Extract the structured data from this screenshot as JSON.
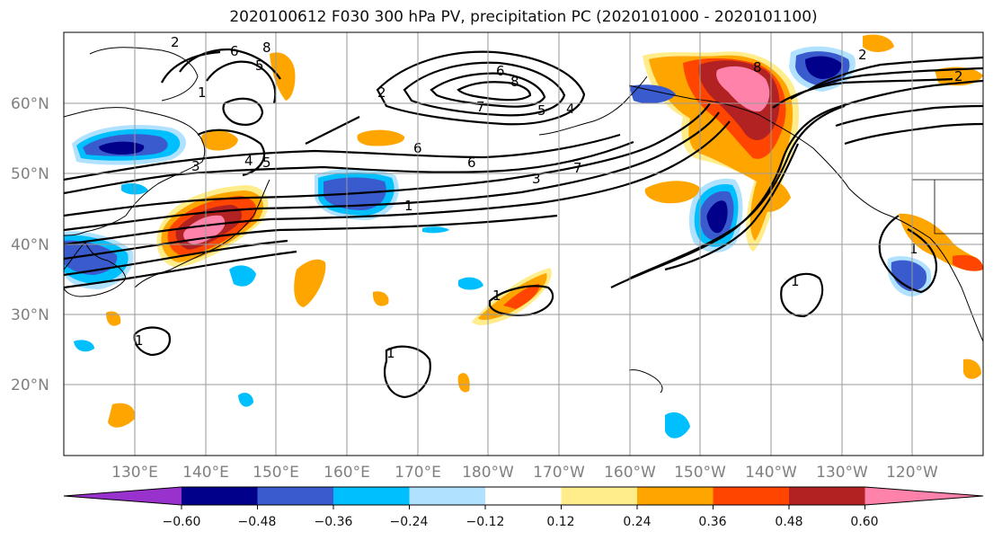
{
  "title": "2020100612 F030 300 hPa PV, precipitation PC (2020101000 - 2020101100)",
  "lat_labels": [
    "60°N",
    "50°N",
    "40°N",
    "30°N",
    "20°N"
  ],
  "lon_labels": [
    "130°E",
    "140°E",
    "150°E",
    "160°E",
    "170°E",
    "180°W",
    "170°W",
    "160°W",
    "150°W",
    "140°W",
    "130°W",
    "120°W"
  ],
  "colorbar": {
    "tick_labels": [
      "−0.60",
      "−0.48",
      "−0.36",
      "−0.24",
      "−0.12",
      "0.12",
      "0.24",
      "0.36",
      "0.48",
      "0.60"
    ],
    "colors": [
      "#9932CC",
      "#00008B",
      "#3A5BCD",
      "#00BFFF",
      "#B0E2FF",
      "#FFFFFF",
      "#FFEC8B",
      "#FFA500",
      "#FF4500",
      "#B22222",
      "#FF82AB"
    ]
  },
  "fill_colors": {
    "neg_strong": "#00008B",
    "neg_mid": "#3A5BCD",
    "neg": "#00BFFF",
    "neg_weak": "#B0E2FF",
    "pos_weak": "#FFEC8B",
    "pos": "#FFA500",
    "pos_mid": "#FF4500",
    "pos_strong": "#B22222",
    "pos_max": "#FF82AB"
  },
  "contour_labels": [
    "2",
    "6",
    "8",
    "5",
    "6",
    "8",
    "7",
    "5",
    "4",
    "1",
    "3",
    "4",
    "5",
    "6",
    "6",
    "1",
    "3",
    "7",
    "2",
    "8",
    "1",
    "1",
    "1",
    "1",
    "1",
    "2",
    "2"
  ]
}
